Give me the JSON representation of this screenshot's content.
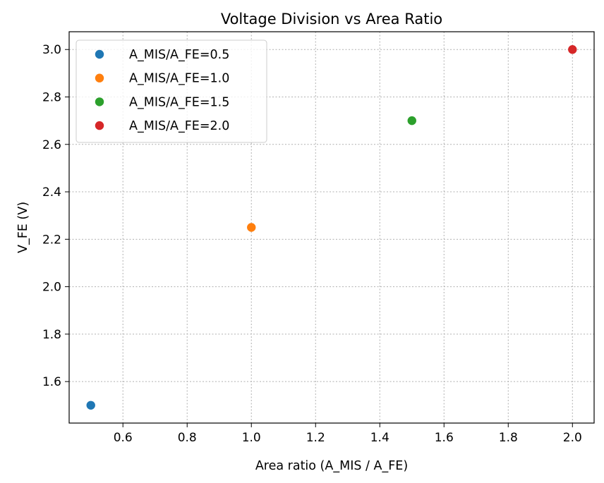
{
  "chart_data": {
    "type": "scatter",
    "title": "Voltage Division vs Area Ratio",
    "xlabel": "Area ratio (A_MIS / A_FE)",
    "ylabel": "V_FE (V)",
    "xlim": [
      0.4325,
      2.0675
    ],
    "ylim": [
      1.425,
      3.075
    ],
    "xticks": [
      0.6,
      0.8,
      1.0,
      1.2,
      1.4,
      1.6,
      1.8,
      2.0
    ],
    "xtick_labels": [
      "0.6",
      "0.8",
      "1.0",
      "1.2",
      "1.4",
      "1.6",
      "1.8",
      "2.0"
    ],
    "yticks": [
      1.6,
      1.8,
      2.0,
      2.2,
      2.4,
      2.6,
      2.8,
      3.0
    ],
    "ytick_labels": [
      "1.6",
      "1.8",
      "2.0",
      "2.2",
      "2.4",
      "2.6",
      "2.8",
      "3.0"
    ],
    "grid": true,
    "legend_position": "top-left",
    "series": [
      {
        "name": "A_MIS/A_FE=0.5",
        "color": "#1f77b4",
        "points": [
          {
            "x": 0.5,
            "y": 1.5
          }
        ]
      },
      {
        "name": "A_MIS/A_FE=1.0",
        "color": "#ff7f0e",
        "points": [
          {
            "x": 1.0,
            "y": 2.25
          }
        ]
      },
      {
        "name": "A_MIS/A_FE=1.5",
        "color": "#2ca02c",
        "points": [
          {
            "x": 1.5,
            "y": 2.7
          }
        ]
      },
      {
        "name": "A_MIS/A_FE=2.0",
        "color": "#d62728",
        "points": [
          {
            "x": 2.0,
            "y": 3.0
          }
        ]
      }
    ]
  }
}
